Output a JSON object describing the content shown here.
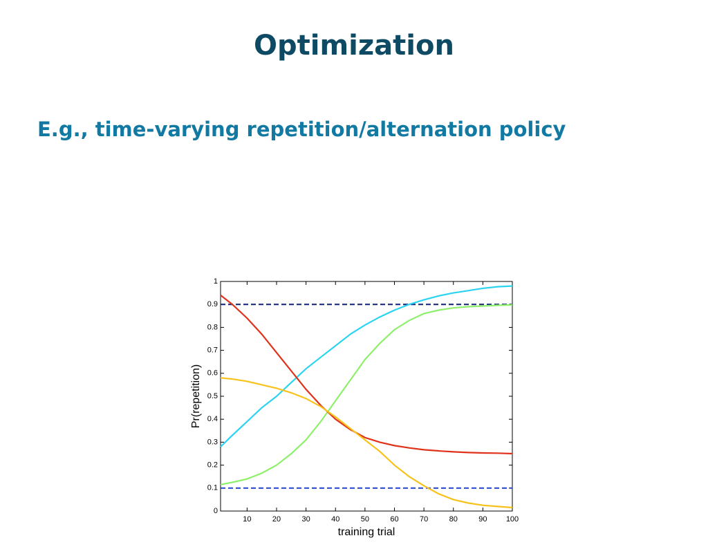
{
  "slide": {
    "title": "Optimization",
    "subtitle": "E.g., time-varying repetition/alternation policy"
  },
  "chart_data": {
    "type": "line",
    "x": [
      1,
      5,
      10,
      15,
      20,
      25,
      30,
      35,
      40,
      45,
      50,
      55,
      60,
      65,
      70,
      75,
      80,
      85,
      90,
      95,
      100
    ],
    "series": [
      {
        "color": "#1b2a80",
        "dash": true,
        "values": [
          0.9,
          0.9,
          0.9,
          0.9,
          0.9,
          0.9,
          0.9,
          0.9,
          0.9,
          0.9,
          0.9,
          0.9,
          0.9,
          0.9,
          0.9,
          0.9,
          0.9,
          0.9,
          0.9,
          0.9,
          0.9
        ]
      },
      {
        "color": "#2f4fd0",
        "dash": true,
        "values": [
          0.1,
          0.1,
          0.1,
          0.1,
          0.1,
          0.1,
          0.1,
          0.1,
          0.1,
          0.1,
          0.1,
          0.1,
          0.1,
          0.1,
          0.1,
          0.1,
          0.1,
          0.1,
          0.1,
          0.1,
          0.1
        ]
      },
      {
        "color": "#2ad4f0",
        "values": [
          0.28,
          0.33,
          0.39,
          0.45,
          0.5,
          0.56,
          0.62,
          0.67,
          0.72,
          0.77,
          0.81,
          0.845,
          0.875,
          0.9,
          0.92,
          0.937,
          0.95,
          0.96,
          0.97,
          0.977,
          0.98
        ]
      },
      {
        "color": "#8ef06a",
        "values": [
          0.115,
          0.125,
          0.14,
          0.165,
          0.2,
          0.25,
          0.31,
          0.39,
          0.48,
          0.57,
          0.66,
          0.73,
          0.79,
          0.83,
          0.86,
          0.875,
          0.885,
          0.89,
          0.893,
          0.896,
          0.898
        ]
      },
      {
        "color": "#e0321a",
        "values": [
          0.94,
          0.9,
          0.84,
          0.77,
          0.69,
          0.61,
          0.53,
          0.46,
          0.4,
          0.355,
          0.32,
          0.3,
          0.285,
          0.275,
          0.267,
          0.262,
          0.258,
          0.255,
          0.253,
          0.252,
          0.25
        ]
      },
      {
        "color": "#f8c21a",
        "values": [
          0.58,
          0.575,
          0.565,
          0.55,
          0.535,
          0.515,
          0.49,
          0.455,
          0.41,
          0.36,
          0.31,
          0.26,
          0.2,
          0.15,
          0.11,
          0.075,
          0.05,
          0.035,
          0.025,
          0.02,
          0.015
        ]
      }
    ],
    "xlabel": "training trial",
    "ylabel": "Pr(repetition)",
    "xlim": [
      1,
      100
    ],
    "ylim": [
      0,
      1
    ],
    "xticks": [
      10,
      20,
      30,
      40,
      50,
      60,
      70,
      80,
      90,
      100
    ],
    "yticks": [
      0,
      0.1,
      0.2,
      0.3,
      0.4,
      0.5,
      0.6,
      0.7,
      0.8,
      0.9,
      1
    ]
  }
}
